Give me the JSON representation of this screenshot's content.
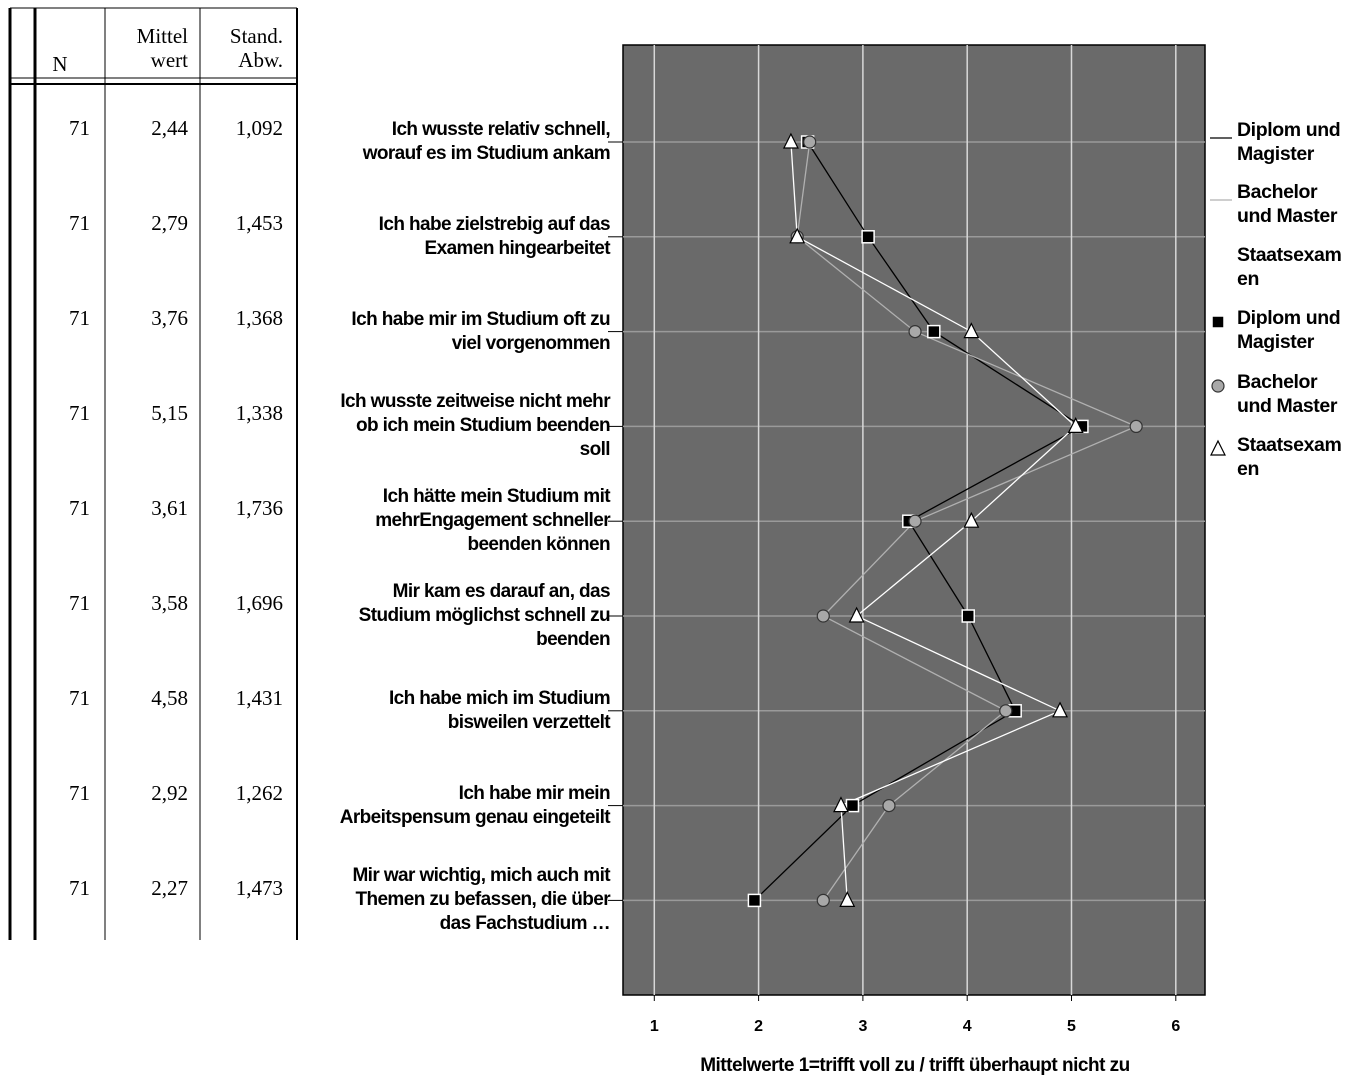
{
  "table": {
    "header": [
      "N",
      "Mittel\nwert",
      "Stand.\nAbw."
    ],
    "rows": [
      [
        "71",
        "2,44",
        "1,092"
      ],
      [
        "71",
        "2,79",
        "1,453"
      ],
      [
        "71",
        "3,76",
        "1,368"
      ],
      [
        "71",
        "5,15",
        "1,338"
      ],
      [
        "71",
        "3,61",
        "1,736"
      ],
      [
        "71",
        "3,58",
        "1,696"
      ],
      [
        "71",
        "4,58",
        "1,431"
      ],
      [
        "71",
        "2,92",
        "1,262"
      ],
      [
        "71",
        "2,27",
        "1,473"
      ]
    ]
  },
  "chart_data": {
    "type": "line",
    "orientation": "horizontal",
    "categories": [
      "Ich wusste relativ schnell, worauf es im Studium ankam",
      "Ich habe zielstrebig auf das Examen hingearbeitet",
      "Ich habe mir im Studium oft zu viel vorgenommen",
      "Ich wusste zeitweise nicht mehr ob ich mein Studium beenden soll",
      "Ich hätte mein Studium mit mehrEngagement schneller beenden können",
      "Mir kam es darauf an, das Studium möglichst schnell zu beenden",
      "Ich habe mich im Studium bisweilen verzettelt",
      "Ich habe mir mein Arbeitspensum genau eingeteilt",
      "Mir war wichtig, mich auch mit Themen zu befassen, die über das Fachstudium …"
    ],
    "series": [
      {
        "name": "Diplom und Magister",
        "color": "#000000",
        "marker": "square",
        "values": [
          2.47,
          3.05,
          3.68,
          5.1,
          3.44,
          4.01,
          4.46,
          2.9,
          1.96
        ]
      },
      {
        "name": "Bachelor und Master",
        "color": "#b0b0b0",
        "marker": "circle",
        "values": [
          2.49,
          2.37,
          3.5,
          5.62,
          3.5,
          2.62,
          4.37,
          3.25,
          2.62
        ]
      },
      {
        "name": "Staatsexamen",
        "color": "#ffffff",
        "marker": "triangle",
        "values": [
          2.31,
          2.37,
          4.04,
          5.04,
          4.04,
          2.94,
          4.89,
          2.79,
          2.85
        ]
      }
    ],
    "xlim": [
      0.7,
      6.28
    ],
    "xticks": [
      1,
      2,
      3,
      4,
      5,
      6
    ],
    "xlabel": "Mittelwerte 1=trifft voll zu / trifft überhaupt nicht zu",
    "grid": true
  }
}
